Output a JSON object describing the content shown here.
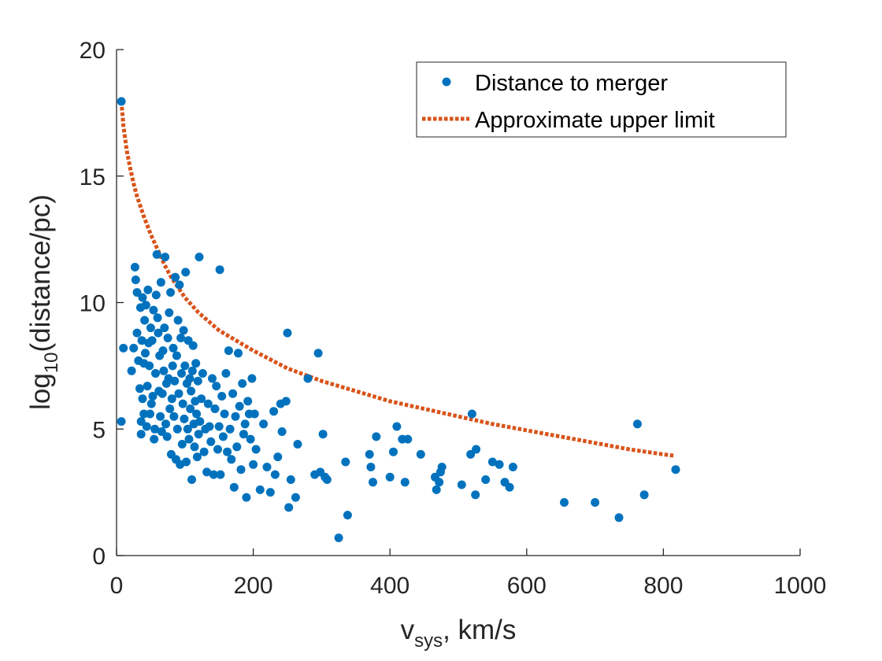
{
  "chart_data": {
    "type": "scatter",
    "xlim": [
      0,
      1000
    ],
    "ylim": [
      0,
      20
    ],
    "xticks": [
      "0",
      "200",
      "400",
      "600",
      "800",
      "1000"
    ],
    "yticks": [
      "0",
      "5",
      "10",
      "15",
      "20"
    ],
    "xticks_values": [
      0,
      200,
      400,
      600,
      800,
      1000
    ],
    "yticks_values": [
      0,
      5,
      10,
      15,
      20
    ],
    "xlabel": {
      "main": "v",
      "sub": "sys",
      "rest": ", km/s"
    },
    "ylabel": {
      "main": "log",
      "sub": "10",
      "rest": "(distance/pc)"
    },
    "legend_position": "top-right",
    "grid": false,
    "colors": {
      "scatter": "#0072BD",
      "line": "#D95319",
      "axis": "#262626"
    },
    "series": [
      {
        "name": "Distance to merger",
        "kind": "scatter",
        "points": [
          [
            7,
            17.95
          ],
          [
            7,
            5.3
          ],
          [
            10,
            8.2
          ],
          [
            22,
            7.3
          ],
          [
            25,
            8.2
          ],
          [
            27,
            11.4
          ],
          [
            28,
            10.9
          ],
          [
            30,
            8.8
          ],
          [
            30,
            10.4
          ],
          [
            32,
            7.7
          ],
          [
            34,
            6.6
          ],
          [
            35,
            9.8
          ],
          [
            36,
            5.3
          ],
          [
            36,
            4.8
          ],
          [
            37,
            8.5
          ],
          [
            38,
            10.2
          ],
          [
            38,
            6.2
          ],
          [
            40,
            7.6
          ],
          [
            40,
            5.6
          ],
          [
            41,
            9.3
          ],
          [
            42,
            8.0
          ],
          [
            43,
            9.9
          ],
          [
            44,
            5.1
          ],
          [
            45,
            6.7
          ],
          [
            46,
            10.5
          ],
          [
            47,
            8.4
          ],
          [
            48,
            7.5
          ],
          [
            49,
            5.6
          ],
          [
            50,
            9.0
          ],
          [
            51,
            6.0
          ],
          [
            52,
            8.5
          ],
          [
            53,
            6.3
          ],
          [
            54,
            9.7
          ],
          [
            55,
            4.6
          ],
          [
            56,
            5.0
          ],
          [
            57,
            7.2
          ],
          [
            58,
            10.3
          ],
          [
            59,
            11.9
          ],
          [
            60,
            9.4
          ],
          [
            61,
            8.8
          ],
          [
            62,
            6.5
          ],
          [
            63,
            7.9
          ],
          [
            64,
            5.5
          ],
          [
            65,
            10.8
          ],
          [
            66,
            4.9
          ],
          [
            67,
            6.4
          ],
          [
            68,
            8.1
          ],
          [
            69,
            7.3
          ],
          [
            70,
            9.0
          ],
          [
            71,
            11.8
          ],
          [
            72,
            5.2
          ],
          [
            73,
            6.8
          ],
          [
            74,
            4.7
          ],
          [
            75,
            8.6
          ],
          [
            76,
            7.0
          ],
          [
            77,
            9.6
          ],
          [
            78,
            5.8
          ],
          [
            79,
            10.4
          ],
          [
            80,
            4.0
          ],
          [
            81,
            6.2
          ],
          [
            82,
            7.5
          ],
          [
            83,
            8.2
          ],
          [
            84,
            5.5
          ],
          [
            85,
            6.9
          ],
          [
            86,
            11.0
          ],
          [
            87,
            3.8
          ],
          [
            88,
            7.9
          ],
          [
            89,
            5.0
          ],
          [
            90,
            9.3
          ],
          [
            91,
            6.4
          ],
          [
            92,
            10.7
          ],
          [
            93,
            3.6
          ],
          [
            94,
            8.6
          ],
          [
            95,
            7.2
          ],
          [
            96,
            4.4
          ],
          [
            97,
            6.0
          ],
          [
            98,
            8.9
          ],
          [
            99,
            5.4
          ],
          [
            100,
            7.5
          ],
          [
            101,
            11.2
          ],
          [
            102,
            3.7
          ],
          [
            103,
            6.8
          ],
          [
            104,
            5.0
          ],
          [
            105,
            8.5
          ],
          [
            106,
            4.6
          ],
          [
            107,
            7.0
          ],
          [
            108,
            5.8
          ],
          [
            109,
            6.5
          ],
          [
            110,
            3.0
          ],
          [
            111,
            7.3
          ],
          [
            112,
            8.3
          ],
          [
            113,
            5.2
          ],
          [
            114,
            4.3
          ],
          [
            115,
            6.1
          ],
          [
            116,
            7.6
          ],
          [
            117,
            5.6
          ],
          [
            118,
            3.9
          ],
          [
            119,
            6.9
          ],
          [
            120,
            4.8
          ],
          [
            121,
            11.8
          ],
          [
            122,
            5.3
          ],
          [
            124,
            6.2
          ],
          [
            126,
            7.2
          ],
          [
            128,
            4.1
          ],
          [
            130,
            5.0
          ],
          [
            132,
            3.3
          ],
          [
            134,
            6.0
          ],
          [
            136,
            5.1
          ],
          [
            138,
            4.5
          ],
          [
            140,
            7.0
          ],
          [
            142,
            3.2
          ],
          [
            144,
            5.8
          ],
          [
            146,
            6.7
          ],
          [
            148,
            4.2
          ],
          [
            150,
            5.1
          ],
          [
            151,
            11.3
          ],
          [
            152,
            3.2
          ],
          [
            154,
            6.3
          ],
          [
            156,
            4.7
          ],
          [
            158,
            5.6
          ],
          [
            160,
            7.2
          ],
          [
            162,
            4.1
          ],
          [
            164,
            8.1
          ],
          [
            166,
            5.0
          ],
          [
            168,
            3.8
          ],
          [
            170,
            6.4
          ],
          [
            172,
            2.7
          ],
          [
            174,
            5.5
          ],
          [
            176,
            4.3
          ],
          [
            178,
            8.0
          ],
          [
            180,
            5.9
          ],
          [
            182,
            3.4
          ],
          [
            184,
            6.8
          ],
          [
            186,
            4.8
          ],
          [
            188,
            5.2
          ],
          [
            190,
            2.3
          ],
          [
            192,
            6.1
          ],
          [
            194,
            5.6
          ],
          [
            196,
            4.6
          ],
          [
            198,
            7.0
          ],
          [
            200,
            3.6
          ],
          [
            202,
            5.6
          ],
          [
            204,
            4.2
          ],
          [
            210,
            2.6
          ],
          [
            215,
            5.2
          ],
          [
            220,
            3.5
          ],
          [
            225,
            2.5
          ],
          [
            230,
            5.7
          ],
          [
            232,
            3.2
          ],
          [
            236,
            3.9
          ],
          [
            240,
            6.0
          ],
          [
            242,
            4.9
          ],
          [
            248,
            6.1
          ],
          [
            250,
            8.8
          ],
          [
            252,
            1.9
          ],
          [
            255,
            3.0
          ],
          [
            262,
            2.3
          ],
          [
            265,
            4.4
          ],
          [
            280,
            7.0
          ],
          [
            290,
            3.2
          ],
          [
            295,
            8.0
          ],
          [
            298,
            3.3
          ],
          [
            302,
            4.8
          ],
          [
            305,
            3.1
          ],
          [
            308,
            3.0
          ],
          [
            325,
            0.7
          ],
          [
            335,
            3.7
          ],
          [
            338,
            1.6
          ],
          [
            370,
            4.0
          ],
          [
            372,
            3.5
          ],
          [
            375,
            2.9
          ],
          [
            380,
            4.7
          ],
          [
            400,
            3.1
          ],
          [
            405,
            4.1
          ],
          [
            410,
            5.1
          ],
          [
            418,
            4.6
          ],
          [
            422,
            2.9
          ],
          [
            426,
            4.6
          ],
          [
            445,
            4.0
          ],
          [
            466,
            3.1
          ],
          [
            468,
            2.6
          ],
          [
            472,
            2.9
          ],
          [
            474,
            3.3
          ],
          [
            476,
            3.5
          ],
          [
            505,
            2.8
          ],
          [
            518,
            4.0
          ],
          [
            520,
            5.6
          ],
          [
            525,
            2.4
          ],
          [
            526,
            4.2
          ],
          [
            540,
            3.0
          ],
          [
            550,
            3.7
          ],
          [
            560,
            3.6
          ],
          [
            568,
            2.9
          ],
          [
            575,
            2.7
          ],
          [
            580,
            3.5
          ],
          [
            655,
            2.1
          ],
          [
            700,
            2.1
          ],
          [
            735,
            1.5
          ],
          [
            762,
            5.2
          ],
          [
            772,
            2.4
          ],
          [
            818,
            3.4
          ]
        ]
      },
      {
        "name": "Approximate upper limit",
        "kind": "line",
        "points": [
          [
            7,
            17.95
          ],
          [
            10,
            17.0
          ],
          [
            15,
            16.0
          ],
          [
            20,
            15.3
          ],
          [
            25,
            14.7
          ],
          [
            30,
            14.2
          ],
          [
            40,
            13.4
          ],
          [
            50,
            12.7
          ],
          [
            60,
            12.1
          ],
          [
            70,
            11.5
          ],
          [
            80,
            11.0
          ],
          [
            100,
            10.2
          ],
          [
            120,
            9.6
          ],
          [
            150,
            8.9
          ],
          [
            200,
            8.1
          ],
          [
            250,
            7.4
          ],
          [
            300,
            6.9
          ],
          [
            350,
            6.5
          ],
          [
            400,
            6.1
          ],
          [
            450,
            5.8
          ],
          [
            500,
            5.5
          ],
          [
            550,
            5.2
          ],
          [
            600,
            4.95
          ],
          [
            650,
            4.7
          ],
          [
            700,
            4.45
          ],
          [
            750,
            4.2
          ],
          [
            800,
            4.0
          ],
          [
            815,
            3.95
          ]
        ]
      }
    ]
  }
}
